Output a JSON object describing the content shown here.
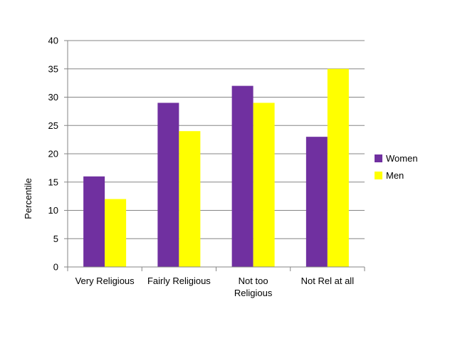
{
  "chart_data": {
    "type": "bar",
    "title": "",
    "xlabel": "",
    "ylabel": "Percentile",
    "ylim": [
      0,
      40
    ],
    "yticks": [
      0,
      5,
      10,
      15,
      20,
      25,
      30,
      35,
      40
    ],
    "categories": [
      [
        "Very Religious"
      ],
      [
        "Fairly Religious"
      ],
      [
        "Not too",
        "Religious"
      ],
      [
        "Not Rel at all"
      ]
    ],
    "series": [
      {
        "name": "Women",
        "color": "#7030A0",
        "values": [
          16,
          29,
          32,
          23
        ]
      },
      {
        "name": "Men",
        "color": "#FFFF00",
        "values": [
          12,
          24,
          29,
          35
        ]
      }
    ],
    "grid": true,
    "legend_position": "right"
  }
}
